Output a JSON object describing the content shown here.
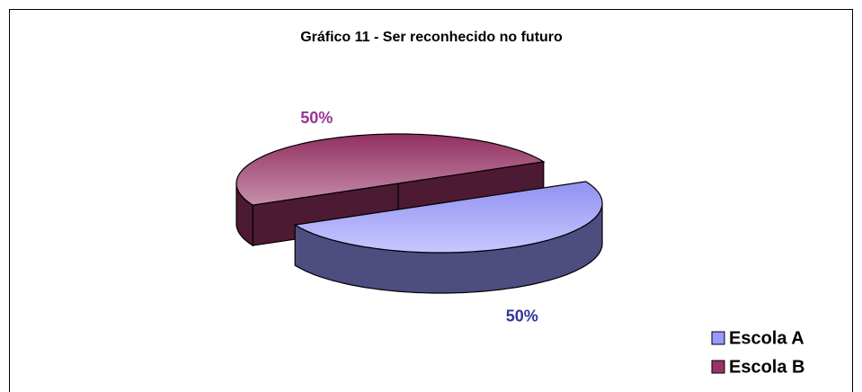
{
  "chart_data": {
    "type": "pie",
    "title": "Gráfico 11 - Ser reconhecido no futuro",
    "categories": [
      "Escola A",
      "Escola B"
    ],
    "values": [
      50,
      50
    ],
    "value_labels": [
      "50%",
      "50%"
    ],
    "colors": [
      "#9999ff",
      "#993366"
    ],
    "label_colors": [
      "#333399",
      "#993399"
    ],
    "legend": "bottom-right"
  }
}
